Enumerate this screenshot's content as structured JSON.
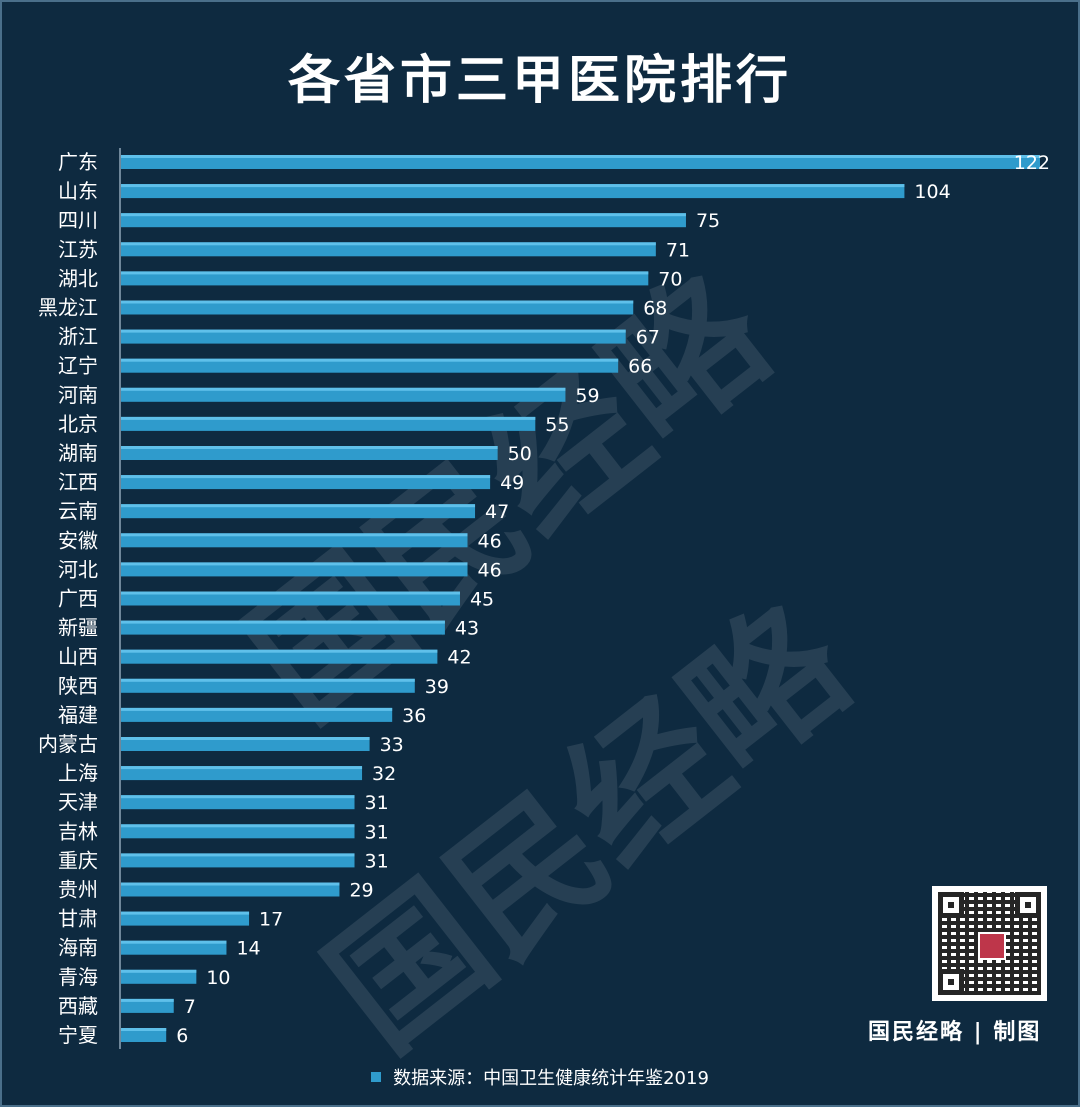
{
  "title": "各省市三甲医院排行",
  "watermark": "国民经略",
  "credit": "国民经略 | 制图",
  "source": "数据来源：中国卫生健康统计年鉴2019",
  "colors": {
    "background": "#0e2a40",
    "bar": "#2f9bcc",
    "text": "#ffffff"
  },
  "chart_data": {
    "type": "bar",
    "orientation": "horizontal",
    "title": "各省市三甲医院排行",
    "xlabel": "",
    "ylabel": "",
    "xlim": [
      0,
      122
    ],
    "grid": false,
    "data_labels": true,
    "categories": [
      "广东",
      "山东",
      "四川",
      "江苏",
      "湖北",
      "黑龙江",
      "浙江",
      "辽宁",
      "河南",
      "北京",
      "湖南",
      "江西",
      "云南",
      "安徽",
      "河北",
      "广西",
      "新疆",
      "山西",
      "陕西",
      "福建",
      "内蒙古",
      "上海",
      "天津",
      "吉林",
      "重庆",
      "贵州",
      "甘肃",
      "海南",
      "青海",
      "西藏",
      "宁夏"
    ],
    "values": [
      122,
      104,
      75,
      71,
      70,
      68,
      67,
      66,
      59,
      55,
      50,
      49,
      47,
      46,
      46,
      45,
      43,
      42,
      39,
      36,
      33,
      32,
      31,
      31,
      31,
      29,
      17,
      14,
      10,
      7,
      6
    ]
  }
}
